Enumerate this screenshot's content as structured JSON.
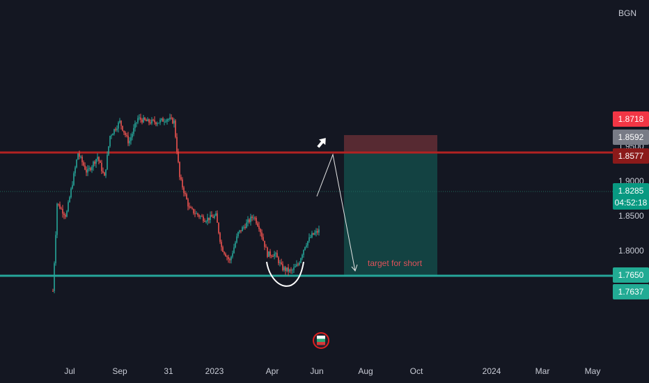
{
  "chart_data": {
    "type": "candlestick",
    "currency": "BGN",
    "y_ticks": [
      "1.9500",
      "1.9000",
      "1.8500",
      "1.8000"
    ],
    "x_ticks": [
      "Jul",
      "Sep",
      "31",
      "2023",
      "Apr",
      "Jun",
      "Aug",
      "Oct",
      "2024",
      "Mar",
      "May"
    ],
    "ylim": [
      1.745,
      1.995
    ],
    "price_tags": [
      {
        "label": "1.8718",
        "color": "#f23645"
      },
      {
        "label": "1.8592",
        "color": "#787b86"
      },
      {
        "label": "1.8577",
        "color": "#8b1a1a"
      },
      {
        "label": "1.8285",
        "sub": "04:52:18",
        "color": "#089981"
      },
      {
        "label": "1.7650",
        "color": "#22ab94"
      },
      {
        "label": "1.7637",
        "color": "#22ab94"
      }
    ],
    "levels": {
      "resistance": 1.8577,
      "support": 1.765,
      "last_price": 1.8285
    },
    "position": {
      "type": "short",
      "entry": 1.8592,
      "stop": 1.8718,
      "target": 1.765
    },
    "annotation": "target for short",
    "colors": {
      "up": "#26a69a",
      "down": "#ef5350",
      "resistance_line": "#b22222",
      "support_line": "#26a69a"
    }
  }
}
